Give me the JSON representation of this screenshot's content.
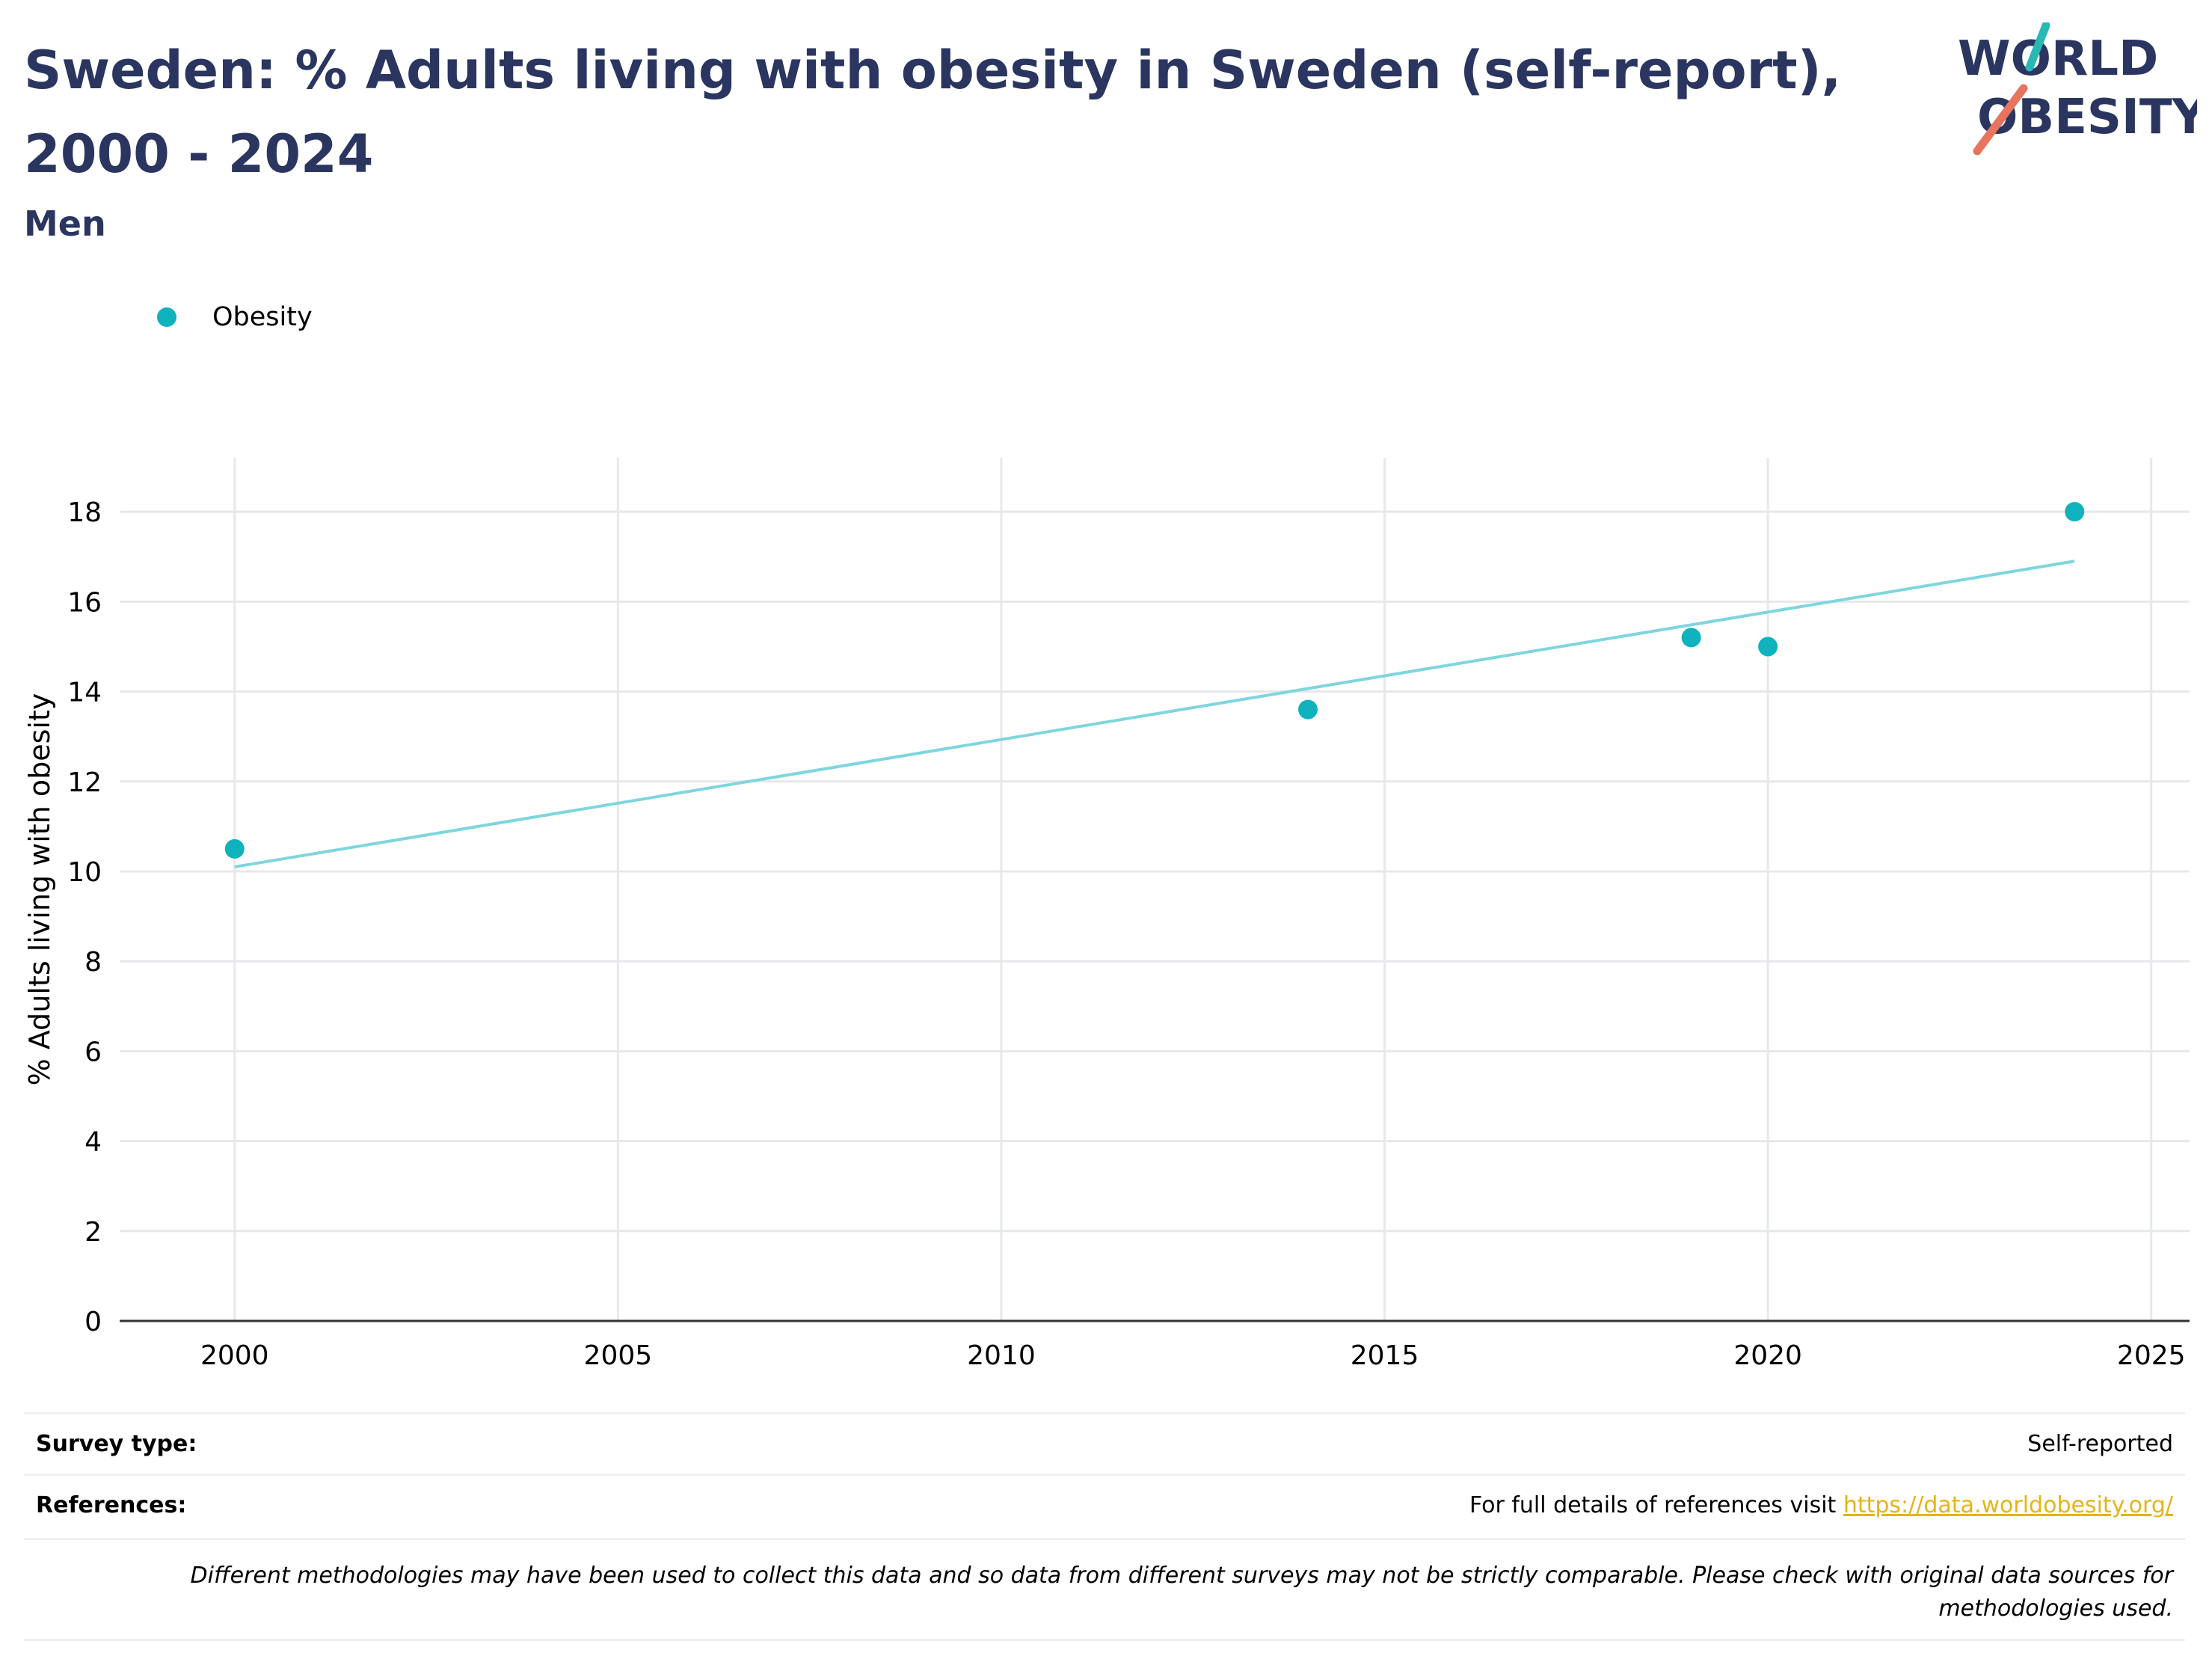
{
  "header": {
    "title": "Sweden: % Adults living with obesity in Sweden (self-report), 2000 - 2024",
    "subtitle": "Men",
    "logo_line1": "WORLD",
    "logo_line2": "OBESITY"
  },
  "colors": {
    "title": "#2a3560",
    "series": "#0fb2bd",
    "trend": "#7fd6dc",
    "grid": "#e6e8ec",
    "link": "#e5b418",
    "logo_teal": "#29b8b4",
    "logo_coral": "#e8735f"
  },
  "chart_data": {
    "type": "scatter",
    "title": "Sweden: % Adults living with obesity in Sweden (self-report), 2000 - 2024",
    "subtitle": "Men",
    "xlabel": "",
    "ylabel": "% Adults living with obesity",
    "xlim": [
      1998.5,
      2025.5
    ],
    "ylim": [
      0,
      19.2
    ],
    "x_ticks": [
      2000,
      2005,
      2010,
      2015,
      2020,
      2025
    ],
    "y_ticks": [
      0,
      2,
      4,
      6,
      8,
      10,
      12,
      14,
      16,
      18
    ],
    "grid": true,
    "legend": "top-left",
    "series": [
      {
        "name": "Obesity",
        "points": [
          {
            "x": 2000,
            "y": 10.5
          },
          {
            "x": 2014,
            "y": 13.6
          },
          {
            "x": 2019,
            "y": 15.2
          },
          {
            "x": 2020,
            "y": 15.0
          },
          {
            "x": 2024,
            "y": 18.0
          }
        ]
      }
    ],
    "trendline": {
      "x": [
        2000,
        2024
      ],
      "y": [
        10.1,
        16.9
      ]
    }
  },
  "footer": {
    "survey_label": "Survey type:",
    "survey_value": "Self-reported",
    "references_label": "References:",
    "references_text": "For full details of references visit ",
    "references_link": "https://data.worldobesity.org/",
    "disclaimer": "Different methodologies may have been used to collect this data and so data from different surveys may not be strictly comparable. Please check with original data sources for methodologies used."
  }
}
